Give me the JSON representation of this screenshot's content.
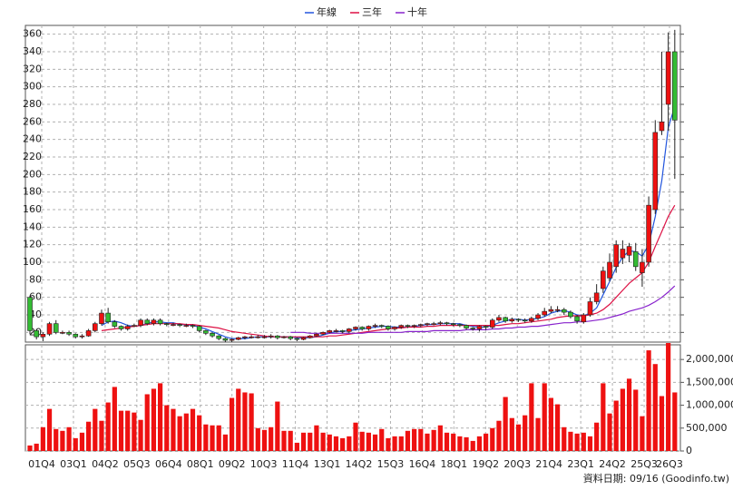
{
  "chart_data": {
    "type": "candlestick",
    "categories": [
      "01Q4",
      null,
      null,
      null,
      null,
      "03Q1",
      null,
      null,
      null,
      null,
      "04Q2",
      null,
      null,
      null,
      null,
      "05Q3",
      null,
      null,
      null,
      null,
      "06Q4",
      null,
      null,
      null,
      null,
      "08Q1",
      null,
      null,
      null,
      null,
      "09Q2",
      null,
      null,
      null,
      null,
      "10Q3",
      null,
      null,
      null,
      null,
      "11Q4",
      null,
      null,
      null,
      null,
      "13Q1",
      null,
      null,
      null,
      null,
      "14Q2",
      null,
      null,
      null,
      null,
      "15Q3",
      null,
      null,
      null,
      null,
      "16Q4",
      null,
      null,
      null,
      null,
      "18Q1",
      null,
      null,
      null,
      null,
      "19Q2",
      null,
      null,
      null,
      null,
      "20Q3",
      null,
      null,
      null,
      null,
      "21Q4",
      null,
      null,
      null,
      null,
      "23Q1",
      null,
      null,
      null,
      null,
      "24Q2",
      null,
      null,
      null,
      null,
      "25Q3",
      null,
      null,
      null,
      "26Q3"
    ],
    "open": [
      60,
      22,
      15,
      18,
      30,
      20,
      20,
      18,
      15,
      16,
      22,
      30,
      42,
      32,
      27,
      24,
      27,
      28,
      34,
      30,
      34,
      30,
      29,
      29,
      28,
      28,
      27,
      22,
      19,
      16,
      13,
      11,
      12,
      14,
      15,
      15,
      15,
      15,
      16,
      14,
      15,
      13,
      12,
      14,
      16,
      18,
      20,
      22,
      22,
      21,
      24,
      26,
      24,
      27,
      28,
      27,
      24,
      26,
      28,
      27,
      28,
      29,
      30,
      30,
      31,
      30,
      29,
      28,
      25,
      24,
      27,
      26,
      34,
      37,
      33,
      35,
      34,
      33,
      36,
      40,
      44,
      46,
      46,
      43,
      38,
      32,
      40,
      55,
      70,
      82,
      95,
      105,
      108,
      112,
      88,
      100,
      160,
      250,
      280,
      340
    ],
    "high": [
      62,
      24,
      20,
      32,
      34,
      22,
      22,
      19,
      18,
      24,
      32,
      46,
      48,
      34,
      28,
      29,
      30,
      36,
      36,
      36,
      36,
      31,
      31,
      30,
      30,
      29,
      28,
      23,
      20,
      17,
      14,
      13,
      15,
      16,
      17,
      17,
      17,
      18,
      17,
      16,
      16,
      14,
      15,
      17,
      19,
      21,
      23,
      24,
      23,
      25,
      27,
      27,
      28,
      30,
      29,
      28,
      27,
      29,
      29,
      29,
      30,
      31,
      32,
      33,
      32,
      31,
      30,
      29,
      26,
      28,
      28,
      36,
      40,
      38,
      37,
      36,
      36,
      38,
      42,
      48,
      50,
      50,
      48,
      45,
      40,
      42,
      60,
      75,
      95,
      110,
      125,
      125,
      122,
      122,
      115,
      175,
      262,
      340,
      362,
      365
    ],
    "low": [
      18,
      12,
      10,
      16,
      18,
      18,
      16,
      13,
      13,
      15,
      20,
      28,
      30,
      25,
      22,
      22,
      26,
      26,
      28,
      28,
      28,
      27,
      27,
      26,
      26,
      25,
      20,
      17,
      14,
      11,
      9,
      9,
      11,
      12,
      13,
      13,
      13,
      13,
      12,
      13,
      11,
      10,
      11,
      13,
      15,
      17,
      19,
      20,
      19,
      19,
      22,
      22,
      22,
      25,
      25,
      22,
      22,
      24,
      25,
      25,
      26,
      27,
      28,
      28,
      28,
      27,
      26,
      23,
      22,
      21,
      23,
      24,
      32,
      31,
      31,
      32,
      31,
      31,
      34,
      38,
      42,
      43,
      40,
      36,
      30,
      30,
      38,
      52,
      65,
      78,
      88,
      98,
      100,
      90,
      72,
      95,
      155,
      245,
      250,
      195
    ],
    "close": [
      22,
      15,
      18,
      30,
      20,
      20,
      18,
      15,
      16,
      22,
      30,
      42,
      32,
      27,
      24,
      27,
      28,
      34,
      30,
      34,
      30,
      29,
      29,
      28,
      28,
      27,
      22,
      19,
      16,
      13,
      11,
      12,
      14,
      15,
      15,
      15,
      15,
      16,
      14,
      15,
      13,
      12,
      14,
      16,
      18,
      20,
      22,
      22,
      21,
      24,
      26,
      24,
      27,
      28,
      27,
      24,
      26,
      28,
      27,
      28,
      29,
      30,
      30,
      31,
      30,
      29,
      28,
      25,
      24,
      27,
      26,
      34,
      37,
      33,
      35,
      34,
      33,
      36,
      40,
      44,
      46,
      46,
      43,
      38,
      33,
      40,
      55,
      65,
      90,
      100,
      120,
      115,
      118,
      95,
      100,
      165,
      248,
      260,
      340,
      262
    ],
    "up_color": "#ee1111",
    "down_color": "#33bb33",
    "series": [
      {
        "name": "年線",
        "color": "#2255dd",
        "values": [
          null,
          null,
          null,
          null,
          null,
          null,
          null,
          null,
          null,
          null,
          null,
          28,
          32,
          33,
          31,
          28,
          27,
          28,
          30,
          32,
          32,
          31,
          31,
          29,
          29,
          28,
          26,
          24,
          21,
          18,
          15,
          13,
          13,
          13,
          14,
          15,
          15,
          15,
          15,
          15,
          15,
          14,
          14,
          14,
          15,
          17,
          19,
          21,
          21,
          22,
          23,
          24,
          25,
          26,
          27,
          27,
          26,
          26,
          26,
          27,
          28,
          29,
          29,
          30,
          30,
          30,
          30,
          28,
          27,
          26,
          26,
          28,
          31,
          33,
          35,
          35,
          34,
          35,
          36,
          38,
          42,
          44,
          45,
          43,
          40,
          39,
          42,
          48,
          63,
          78,
          94,
          106,
          113,
          112,
          107,
          120,
          152,
          193,
          253,
          278
        ]
      },
      {
        "name": "三年",
        "color": "#dd1144",
        "values": [
          null,
          null,
          null,
          null,
          null,
          null,
          null,
          null,
          null,
          null,
          null,
          22,
          23,
          24,
          25,
          26,
          27,
          28,
          29,
          30,
          30,
          30,
          30,
          30,
          29,
          29,
          28,
          27,
          26,
          25,
          23,
          21,
          20,
          19,
          18,
          17,
          16,
          15,
          15,
          15,
          15,
          15,
          15,
          15,
          15,
          15,
          16,
          16,
          17,
          18,
          19,
          20,
          21,
          22,
          23,
          24,
          25,
          25,
          26,
          26,
          26,
          27,
          27,
          28,
          28,
          28,
          28,
          28,
          28,
          28,
          28,
          28,
          28,
          29,
          30,
          30,
          31,
          32,
          33,
          34,
          35,
          37,
          38,
          39,
          39,
          39,
          40,
          42,
          46,
          52,
          60,
          68,
          76,
          82,
          88,
          100,
          118,
          135,
          152,
          165
        ]
      },
      {
        "name": "十年",
        "color": "#8822cc",
        "values": [
          null,
          null,
          null,
          null,
          null,
          null,
          null,
          null,
          null,
          null,
          null,
          null,
          null,
          null,
          null,
          null,
          null,
          null,
          null,
          null,
          null,
          null,
          null,
          null,
          null,
          null,
          null,
          null,
          null,
          null,
          null,
          null,
          null,
          null,
          null,
          null,
          null,
          null,
          null,
          null,
          20,
          20,
          20,
          19,
          19,
          19,
          19,
          19,
          19,
          19,
          19,
          19,
          20,
          20,
          20,
          20,
          20,
          20,
          21,
          21,
          21,
          21,
          22,
          22,
          22,
          22,
          22,
          23,
          23,
          23,
          23,
          24,
          24,
          25,
          25,
          26,
          26,
          27,
          27,
          28,
          29,
          30,
          31,
          31,
          32,
          32,
          33,
          34,
          35,
          37,
          39,
          41,
          44,
          46,
          48,
          51,
          55,
          60,
          66,
          73
        ]
      }
    ],
    "ylim": [
      10,
      370
    ],
    "yticks": [
      20,
      40,
      60,
      80,
      100,
      120,
      140,
      160,
      180,
      200,
      220,
      240,
      260,
      280,
      300,
      320,
      340,
      360
    ],
    "volume": [
      120000,
      160000,
      520000,
      920000,
      480000,
      440000,
      520000,
      280000,
      400000,
      640000,
      920000,
      660000,
      1060000,
      1400000,
      880000,
      880000,
      840000,
      680000,
      1240000,
      1360000,
      1480000,
      1000000,
      920000,
      760000,
      820000,
      920000,
      780000,
      580000,
      560000,
      560000,
      360000,
      1160000,
      1360000,
      1280000,
      1260000,
      500000,
      460000,
      520000,
      1080000,
      440000,
      440000,
      180000,
      400000,
      400000,
      560000,
      400000,
      360000,
      320000,
      280000,
      320000,
      620000,
      420000,
      400000,
      360000,
      480000,
      280000,
      320000,
      320000,
      440000,
      480000,
      480000,
      380000,
      460000,
      560000,
      400000,
      380000,
      320000,
      300000,
      220000,
      320000,
      380000,
      500000,
      660000,
      1180000,
      720000,
      580000,
      780000,
      1480000,
      720000,
      1480000,
      1160000,
      1020000,
      520000,
      420000,
      380000,
      400000,
      320000,
      620000,
      1480000,
      820000,
      1100000,
      1360000,
      1580000,
      1340000,
      760000,
      2200000,
      1900000,
      1200000,
      2360000,
      1280000
    ],
    "volume_color": "#ee1111",
    "y2lim": [
      0,
      2400000
    ],
    "y2ticks": [
      0,
      {
        "value": 500000,
        "label": "500,000"
      },
      {
        "value": 1000000,
        "label": "1,000,000"
      },
      {
        "value": 1500000,
        "label": "1,500,000"
      },
      {
        "value": 2000000,
        "label": "2,000,000"
      }
    ],
    "grid": true,
    "source": "資料日期: 09/16 (Goodinfo.tw)"
  }
}
